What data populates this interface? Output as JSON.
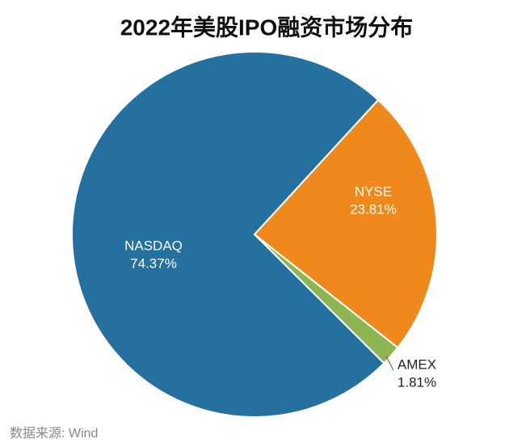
{
  "chart_data": {
    "type": "pie",
    "title": "2022年美股IPO融资市场分布",
    "categories": [
      "NYSE",
      "AMEX",
      "NASDAQ"
    ],
    "values": [
      23.81,
      1.81,
      74.37
    ],
    "value_labels": [
      "23.81%",
      "1.81%",
      "74.37%"
    ],
    "colors": [
      "#f0891c",
      "#8db552",
      "#2471a0"
    ],
    "source": "数据来源: Wind"
  }
}
